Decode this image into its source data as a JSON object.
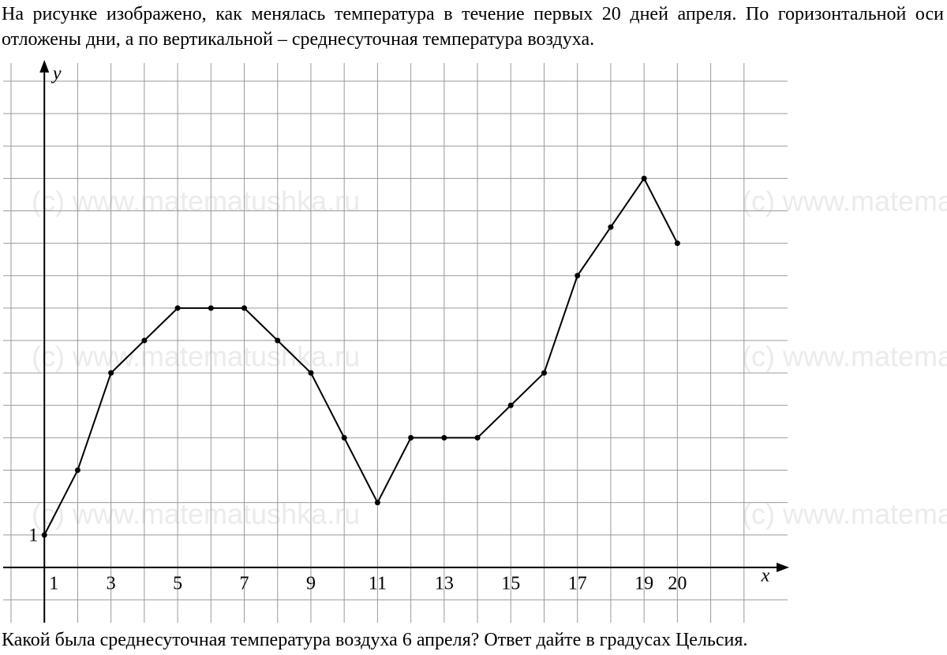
{
  "question_top": "На рисунке изображено, как менялась температура в течение первых 20 дней апреля. По горизонтальной оси отложены дни, а по вертикальной – среднесуточная температура воздуха.",
  "question_bottom": "Какой была среднесуточная температура воздуха 6 апреля? Ответ дайте в градусах Цельсия.",
  "watermark": "(c) www.matematushka.ru",
  "chart_data": {
    "type": "line",
    "x_label": "x",
    "y_label": "y",
    "x": [
      1,
      2,
      3,
      4,
      5,
      6,
      7,
      8,
      9,
      10,
      11,
      12,
      13,
      14,
      15,
      16,
      17,
      18,
      19,
      20
    ],
    "series": [
      {
        "color": "#000000",
        "values": [
          1,
          3,
          6,
          7,
          8,
          8,
          8,
          7,
          6,
          4,
          2,
          4,
          4,
          4,
          5,
          6,
          9,
          10.5,
          12,
          10
        ]
      }
    ],
    "xlim": [
      0,
      23
    ],
    "ylim": [
      -1,
      15
    ],
    "xticks": [
      1,
      3,
      5,
      7,
      9,
      11,
      13,
      15,
      17,
      19,
      20
    ],
    "yticks": [
      1
    ],
    "grid": true,
    "xgrid": [
      0,
      1,
      2,
      3,
      4,
      5,
      6,
      7,
      8,
      9,
      10,
      11,
      12,
      13,
      14,
      15,
      16,
      17,
      18,
      19,
      20,
      21,
      22
    ],
    "ygrid": [
      -1,
      0,
      1,
      2,
      3,
      4,
      5,
      6,
      7,
      8,
      9,
      10,
      11,
      12,
      13,
      14,
      15
    ]
  }
}
